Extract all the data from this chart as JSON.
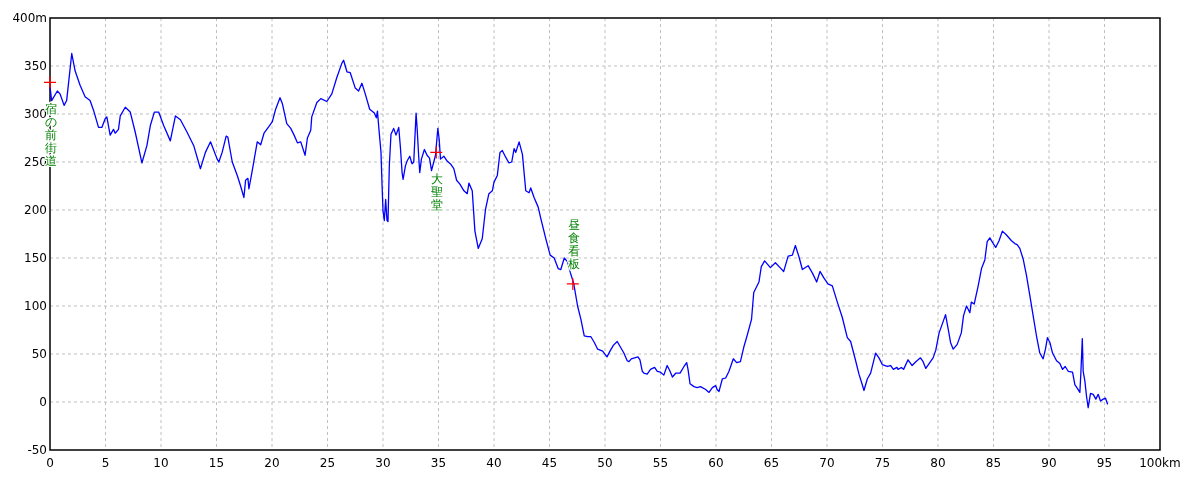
{
  "chart_data": {
    "type": "line",
    "color": "#0000ff",
    "marker": "none",
    "line_style": "solid",
    "grid": true,
    "xlim": [
      0,
      100
    ],
    "ylim": [
      -50,
      400
    ],
    "xticks": [
      0,
      5,
      10,
      15,
      20,
      25,
      30,
      35,
      40,
      45,
      50,
      55,
      60,
      65,
      70,
      75,
      80,
      85,
      90,
      95,
      {
        "value": 100,
        "label": "100km"
      }
    ],
    "yticks": [
      -50,
      0,
      50,
      100,
      150,
      200,
      250,
      300,
      350,
      {
        "value": 400,
        "label": "400m"
      }
    ],
    "x": [
      0,
      0.15,
      0.66,
      0.9,
      1.27,
      1.5,
      1.96,
      2.26,
      2.71,
      3.16,
      3.61,
      3.92,
      4.37,
      4.67,
      4.97,
      5.12,
      5.42,
      5.72,
      5.87,
      6.17,
      6.33,
      6.78,
      7.23,
      7.68,
      8.28,
      8.73,
      9.04,
      9.4,
      9.79,
      10.24,
      10.84,
      11.3,
      11.75,
      12.35,
      12.95,
      13.55,
      14.0,
      14.46,
      15.06,
      15.21,
      15.51,
      15.87,
      16.02,
      16.42,
      16.87,
      17.17,
      17.47,
      17.62,
      17.83,
      17.92,
      18.22,
      18.67,
      18.98,
      19.28,
      19.73,
      20.03,
      20.33,
      20.72,
      20.93,
      21.33,
      21.69,
      21.99,
      22.29,
      22.59,
      22.98,
      23.19,
      23.49,
      23.58,
      24.04,
      24.4,
      24.94,
      25.39,
      25.84,
      26.3,
      26.45,
      26.75,
      27.05,
      27.5,
      27.8,
      28.1,
      28.4,
      28.8,
      29.22,
      29.4,
      29.5,
      29.62,
      29.82,
      29.9,
      30.0,
      30.12,
      30.24,
      30.36,
      30.45,
      30.57,
      30.72,
      30.96,
      31.17,
      31.42,
      31.57,
      31.72,
      31.81,
      32.02,
      32.17,
      32.41,
      32.62,
      32.77,
      32.98,
      33.07,
      33.22,
      33.31,
      33.46,
      33.73,
      33.97,
      34.19,
      34.37,
      34.73,
      34.94,
      35.06,
      35.18,
      35.48,
      35.78,
      36.08,
      36.38,
      36.63,
      36.93,
      37.29,
      37.59,
      37.74,
      38.04,
      38.28,
      38.58,
      38.94,
      39.24,
      39.54,
      39.85,
      40.0,
      40.3,
      40.54,
      40.75,
      41.05,
      41.35,
      41.6,
      41.81,
      41.96,
      42.26,
      42.56,
      42.86,
      43.16,
      43.31,
      43.61,
      43.98,
      44.22,
      44.67,
      45.06,
      45.42,
      45.78,
      46.02,
      46.33,
      46.63,
      46.87,
      47.17,
      47.53,
      47.83,
      48.13,
      48.43,
      48.73,
      49.04,
      49.34,
      49.79,
      50.18,
      50.45,
      50.75,
      51.1,
      51.4,
      51.7,
      52.0,
      52.16,
      52.37,
      52.97,
      53.15,
      53.36,
      53.5,
      53.8,
      54.1,
      54.47,
      54.71,
      55.0,
      55.3,
      55.6,
      55.86,
      56.07,
      56.37,
      56.76,
      57.12,
      57.36,
      57.48,
      57.66,
      58.02,
      58.3,
      58.6,
      59.07,
      59.37,
      59.67,
      59.97,
      60.1,
      60.27,
      60.57,
      60.87,
      61.17,
      61.56,
      61.86,
      62.2,
      62.5,
      62.8,
      63.2,
      63.4,
      63.87,
      64.08,
      64.38,
      64.9,
      65.35,
      65.77,
      66.1,
      66.5,
      66.88,
      67.15,
      67.48,
      67.78,
      68.3,
      68.7,
      69.07,
      69.37,
      69.73,
      70.09,
      70.48,
      70.93,
      71.38,
      71.83,
      72.13,
      72.58,
      72.88,
      73.18,
      73.33,
      73.63,
      73.93,
      74.38,
      74.68,
      74.98,
      75.43,
      75.74,
      75.98,
      76.3,
      76.4,
      76.7,
      76.9,
      77.3,
      77.67,
      78.0,
      78.42,
      78.66,
      78.9,
      79.26,
      79.56,
      79.8,
      80.1,
      80.47,
      80.68,
      80.92,
      81.13,
      81.37,
      81.73,
      82.1,
      82.3,
      82.57,
      82.87,
      83.0,
      83.26,
      83.62,
      83.92,
      84.22,
      84.43,
      84.67,
      84.98,
      85.2,
      85.5,
      85.8,
      86.17,
      86.62,
      86.92,
      87.13,
      87.37,
      87.67,
      87.97,
      88.27,
      88.57,
      88.87,
      89.17,
      89.47,
      89.68,
      89.86,
      90.08,
      90.32,
      90.68,
      90.98,
      91.22,
      91.46,
      91.73,
      92.12,
      92.33,
      92.57,
      92.78,
      92.87,
      93.0,
      93.08,
      93.23,
      93.38,
      93.53,
      93.74,
      93.98,
      94.22,
      94.43,
      94.64,
      94.88,
      95.09,
      95.27
    ],
    "values": [
      328,
      314,
      324,
      321,
      309,
      314,
      363,
      345,
      330,
      318,
      314,
      304,
      286,
      286,
      295,
      297,
      278,
      284,
      280,
      284,
      298,
      307,
      302,
      281,
      249,
      267,
      288,
      302,
      302,
      288,
      272,
      298,
      294,
      281,
      267,
      243,
      260,
      271,
      253,
      250,
      260,
      277,
      276,
      250,
      236,
      225,
      213,
      231,
      233,
      222,
      241,
      271,
      268,
      280,
      287,
      292,
      305,
      317,
      311,
      290,
      285,
      278,
      270,
      271,
      257,
      275,
      283,
      297,
      312,
      316,
      313,
      321,
      338,
      353,
      356,
      344,
      343,
      327,
      324,
      332,
      321,
      305,
      301,
      296,
      303,
      286,
      260,
      231,
      199,
      189,
      211,
      189,
      188,
      246,
      279,
      285,
      278,
      286,
      265,
      239,
      232,
      246,
      251,
      256,
      248,
      250,
      301,
      286,
      255,
      239,
      253,
      263,
      257,
      254,
      241,
      257,
      285,
      274,
      253,
      256,
      251,
      248,
      243,
      231,
      227,
      220,
      217,
      228,
      220,
      178,
      160,
      170,
      201,
      217,
      220,
      229,
      236,
      260,
      262,
      255,
      249,
      250,
      264,
      260,
      271,
      258,
      220,
      218,
      223,
      213,
      203,
      191,
      170,
      153,
      150,
      139,
      138,
      150,
      146,
      135,
      124,
      100,
      86,
      69,
      68,
      68,
      62,
      55,
      53,
      47,
      53,
      59,
      63,
      57,
      51,
      43,
      42,
      45,
      47,
      44,
      32,
      30,
      29,
      34,
      36,
      32,
      31,
      28,
      38,
      32,
      26,
      30,
      30,
      37,
      41,
      34,
      19,
      16,
      15,
      16,
      13,
      10,
      15,
      17,
      13,
      11,
      24,
      25,
      32,
      45,
      41,
      42,
      57,
      69,
      86,
      114,
      125,
      141,
      147,
      140,
      145,
      140,
      136,
      152,
      153,
      163,
      151,
      138,
      142,
      134,
      125,
      136,
      129,
      123,
      121,
      104,
      88,
      67,
      63,
      43,
      29,
      18,
      12,
      24,
      30,
      51,
      46,
      39,
      37,
      38,
      34,
      36,
      34,
      36,
      34,
      44,
      38,
      42,
      46,
      42,
      35,
      41,
      46,
      54,
      72,
      84,
      91,
      76,
      62,
      55,
      60,
      72,
      90,
      100,
      93,
      104,
      102,
      121,
      139,
      148,
      167,
      171,
      165,
      161,
      168,
      178,
      174,
      168,
      165,
      164,
      160,
      149,
      132,
      111,
      90,
      69,
      51,
      45,
      55,
      67,
      62,
      51,
      43,
      40,
      34,
      37,
      32,
      31,
      18,
      14,
      10,
      30,
      66,
      32,
      22,
      6,
      -6,
      9,
      8,
      3,
      8,
      1,
      3,
      4,
      -2
    ],
    "annotations": [
      {
        "text": "宿の前街道",
        "x": 0,
        "y": 333
      },
      {
        "text": "大聖堂",
        "x": 34.8,
        "y": 260
      },
      {
        "text": "昼食看板",
        "x": 47.1,
        "y": 123
      }
    ]
  }
}
